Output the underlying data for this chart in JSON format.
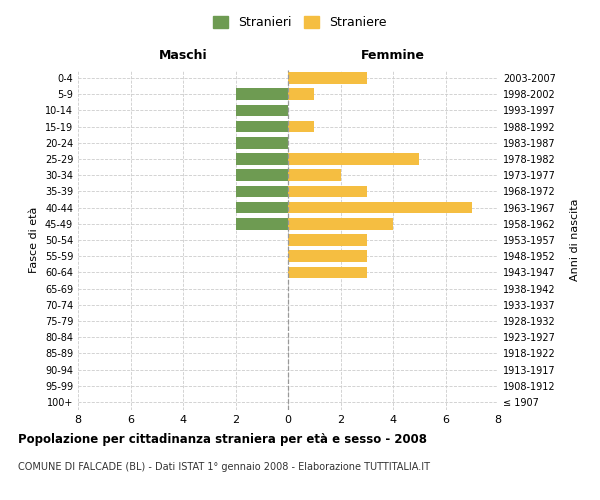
{
  "age_groups": [
    "100+",
    "95-99",
    "90-94",
    "85-89",
    "80-84",
    "75-79",
    "70-74",
    "65-69",
    "60-64",
    "55-59",
    "50-54",
    "45-49",
    "40-44",
    "35-39",
    "30-34",
    "25-29",
    "20-24",
    "15-19",
    "10-14",
    "5-9",
    "0-4"
  ],
  "birth_years": [
    "≤ 1907",
    "1908-1912",
    "1913-1917",
    "1918-1922",
    "1923-1927",
    "1928-1932",
    "1933-1937",
    "1938-1942",
    "1943-1947",
    "1948-1952",
    "1953-1957",
    "1958-1962",
    "1963-1967",
    "1968-1972",
    "1973-1977",
    "1978-1982",
    "1983-1987",
    "1988-1992",
    "1993-1997",
    "1998-2002",
    "2003-2007"
  ],
  "stranieri": [
    0,
    0,
    0,
    0,
    0,
    0,
    0,
    0,
    0,
    0,
    0,
    2,
    2,
    2,
    2,
    2,
    2,
    2,
    2,
    2,
    0
  ],
  "straniere": [
    0,
    0,
    0,
    0,
    0,
    0,
    0,
    0,
    3,
    3,
    3,
    4,
    7,
    3,
    2,
    5,
    0,
    1,
    0,
    1,
    3
  ],
  "stranieri_color": "#6e9b52",
  "straniere_color": "#f5be41",
  "title": "Popolazione per cittadinanza straniera per età e sesso - 2008",
  "subtitle": "COMUNE DI FALCADE (BL) - Dati ISTAT 1° gennaio 2008 - Elaborazione TUTTITALIA.IT",
  "xlabel_left": "Maschi",
  "xlabel_right": "Femmine",
  "ylabel_left": "Fasce di età",
  "ylabel_right": "Anni di nascita",
  "xlim": 8,
  "bg_color": "#ffffff",
  "grid_color": "#cccccc"
}
